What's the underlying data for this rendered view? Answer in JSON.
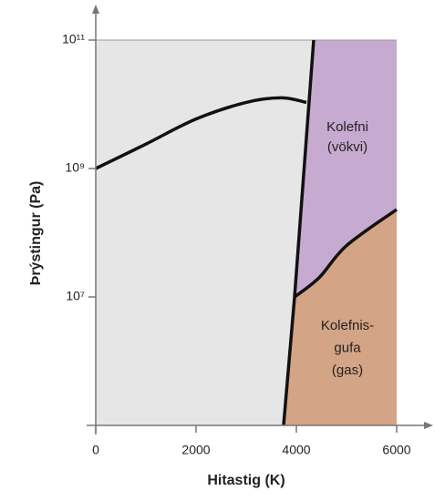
{
  "chart_data": {
    "type": "phase",
    "x_label": "Hitastig (K)",
    "y_label": "Þrýstingur (Pa)",
    "xlim": [
      0,
      6000
    ],
    "ylim": [
      100000,
      100000000000
    ],
    "yscale": "log",
    "xticks": [
      0,
      2000,
      4000,
      6000
    ],
    "yticks": [
      {
        "value": 10000000,
        "label": "10⁷"
      },
      {
        "value": 1000000000,
        "label": "10⁹"
      },
      {
        "value": 100000000000,
        "label": "10¹¹"
      }
    ],
    "background_color": "#e6e6e7",
    "liquid_color": "#c6aad0",
    "gas_color": "#d4a486",
    "line_color": "#111111",
    "lines": [
      {
        "x": [
          0,
          1000,
          2000,
          3000,
          3700,
          4200
        ],
        "y": [
          1000000000,
          2400000000,
          5900000000,
          10700000000,
          12600000000,
          10700000000
        ]
      },
      {
        "x": [
          3745,
          3964,
          4345
        ],
        "y": [
          100000,
          10000000,
          100000000000
        ]
      },
      {
        "x": [
          3964,
          4455,
          5000,
          6000
        ],
        "y": [
          10000000,
          20000000,
          63000000,
          230000000
        ]
      }
    ],
    "annotations": [
      [
        "Kolefni",
        "(vökvi)"
      ],
      [
        "Kolefnis-",
        "gufa",
        "(gas)"
      ]
    ]
  }
}
